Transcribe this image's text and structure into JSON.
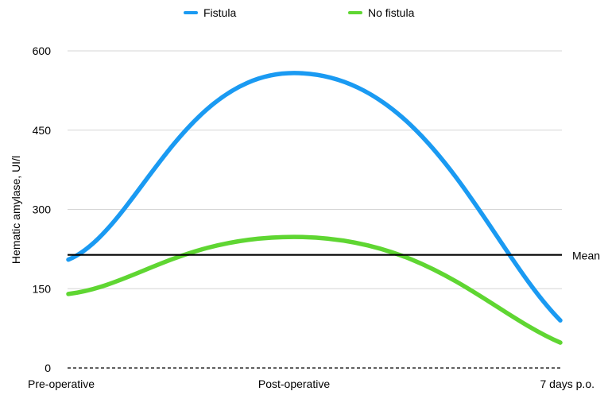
{
  "chart_data": {
    "type": "line",
    "title": "",
    "xlabel": "",
    "ylabel": "Hematic amylase, UI/l",
    "categories": [
      "Pre-operative",
      "Post-operative",
      "7 days p.o."
    ],
    "ylim": [
      0,
      600
    ],
    "yticks": [
      "0",
      "150",
      "300",
      "450",
      "600"
    ],
    "grid": true,
    "legend_position": "top-center",
    "series": [
      {
        "name": "Fistula",
        "color": "#1a9af2",
        "values": [
          205,
          558,
          90
        ]
      },
      {
        "name": "No fistula",
        "color": "#5fd632",
        "values": [
          140,
          248,
          48
        ]
      }
    ],
    "reference_line": {
      "label": "Mean",
      "value": 214,
      "color": "#000000"
    }
  }
}
